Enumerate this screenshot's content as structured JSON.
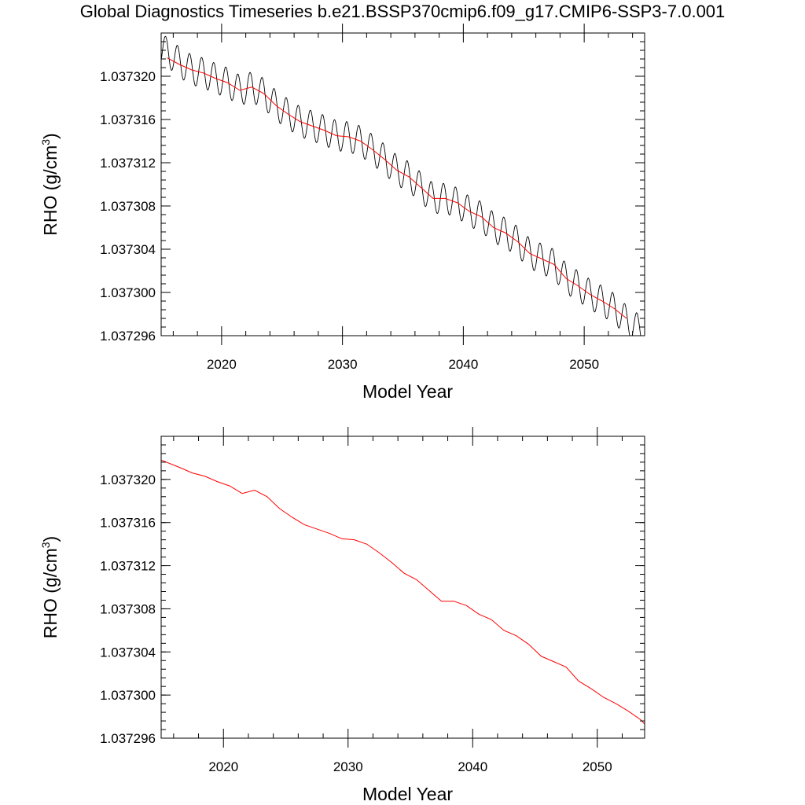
{
  "figure": {
    "title": "Global Diagnostics Timeseries b.e21.BSSP370cmip6.f09_g17.CMIP6-SSP3-7.0.001"
  },
  "colors": {
    "raw_series": "#000000",
    "smoothed_series": "#ff0000",
    "axes": "#000000"
  },
  "chart_data": [
    {
      "type": "line",
      "xlabel": "Model Year",
      "ylabel_base": "RHO (g/cm",
      "ylabel_sup": "3",
      "ylabel_close": ")",
      "xlim": [
        2015,
        2055
      ],
      "ylim": [
        1.037296,
        1.037324
      ],
      "xticks": [
        2020,
        2030,
        2040,
        2050
      ],
      "xtick_labels": [
        "2020",
        "2030",
        "2040",
        "2050"
      ],
      "yticks": [
        1.037296,
        1.0373,
        1.037304,
        1.037308,
        1.037312,
        1.037316,
        1.03732
      ],
      "ytick_labels": [
        "1.037296",
        "1.037300",
        "1.037304",
        "1.037308",
        "1.037312",
        "1.037316",
        "1.037320"
      ],
      "grid": false,
      "series": [
        {
          "role": "monthly",
          "seasonal_amplitude": 1.4e-06,
          "x": [
            2015.5,
            2016.5,
            2017.5,
            2018.5,
            2019.5,
            2020.5,
            2021.5,
            2022.5,
            2023.5,
            2024.5,
            2025.5,
            2026.5,
            2027.5,
            2028.5,
            2029.5,
            2030.5,
            2031.5,
            2032.5,
            2033.5,
            2034.5,
            2035.5,
            2036.5,
            2037.5,
            2038.5,
            2039.5,
            2040.5,
            2041.5,
            2042.5,
            2043.5,
            2044.5,
            2045.5,
            2046.5,
            2047.5,
            2048.5,
            2049.5,
            2050.5,
            2051.5,
            2052.5,
            2053.5,
            2054.5
          ],
          "y": [
            1.0373223,
            1.0373213,
            1.0373206,
            1.0373203,
            1.0373198,
            1.0373194,
            1.0373187,
            1.037319,
            1.0373184,
            1.0373173,
            1.0373165,
            1.0373158,
            1.0373154,
            1.037315,
            1.0373145,
            1.0373144,
            1.037314,
            1.0373132,
            1.0373123,
            1.0373113,
            1.0373107,
            1.0373097,
            1.0373087,
            1.0373087,
            1.0373083,
            1.0373075,
            1.037307,
            1.037306,
            1.0373055,
            1.0373047,
            1.0373036,
            1.0373031,
            1.0373026,
            1.0373013,
            1.0373006,
            1.0372998,
            1.0372992,
            1.0372985,
            1.0372974,
            1.0372966
          ]
        },
        {
          "role": "annual",
          "x": [
            2015.5,
            2016.5,
            2017.5,
            2018.5,
            2019.5,
            2020.5,
            2021.5,
            2022.5,
            2023.5,
            2024.5,
            2025.5,
            2026.5,
            2027.5,
            2028.5,
            2029.5,
            2030.5,
            2031.5,
            2032.5,
            2033.5,
            2034.5,
            2035.5,
            2036.5,
            2037.5,
            2038.5,
            2039.5,
            2040.5,
            2041.5,
            2042.5,
            2043.5,
            2044.5,
            2045.5,
            2046.5,
            2047.5,
            2048.5,
            2049.5,
            2050.5,
            2051.5,
            2052.5,
            2053.5
          ],
          "y": [
            1.0373217,
            1.0373211,
            1.0373206,
            1.0373203,
            1.0373198,
            1.0373194,
            1.0373187,
            1.037319,
            1.0373184,
            1.0373173,
            1.0373165,
            1.0373158,
            1.0373154,
            1.037315,
            1.0373145,
            1.0373144,
            1.037314,
            1.0373132,
            1.0373123,
            1.0373113,
            1.0373107,
            1.0373097,
            1.0373087,
            1.0373087,
            1.0373083,
            1.0373075,
            1.037307,
            1.037306,
            1.0373055,
            1.0373047,
            1.0373036,
            1.0373031,
            1.0373026,
            1.0373013,
            1.0373006,
            1.0372998,
            1.0372992,
            1.0372985,
            1.0372976
          ]
        }
      ]
    },
    {
      "type": "line",
      "xlabel": "Model Year",
      "ylabel_base": "RHO (g/cm",
      "ylabel_sup": "3",
      "ylabel_close": ")",
      "xlim": [
        2015,
        2053.8
      ],
      "ylim": [
        1.037296,
        1.037324
      ],
      "xticks": [
        2020,
        2030,
        2040,
        2050
      ],
      "xtick_labels": [
        "2020",
        "2030",
        "2040",
        "2050"
      ],
      "yticks": [
        1.037296,
        1.0373,
        1.037304,
        1.037308,
        1.037312,
        1.037316,
        1.03732
      ],
      "ytick_labels": [
        "1.037296",
        "1.037300",
        "1.037304",
        "1.037308",
        "1.037312",
        "1.037316",
        "1.037320"
      ],
      "grid": false,
      "series": [
        {
          "role": "annual",
          "x": [
            2015.0,
            2016.5,
            2017.5,
            2018.5,
            2019.5,
            2020.5,
            2021.5,
            2022.5,
            2023.5,
            2024.5,
            2025.5,
            2026.5,
            2027.5,
            2028.5,
            2029.5,
            2030.5,
            2031.5,
            2032.5,
            2033.5,
            2034.5,
            2035.5,
            2036.5,
            2037.5,
            2038.5,
            2039.5,
            2040.5,
            2041.5,
            2042.5,
            2043.5,
            2044.5,
            2045.5,
            2046.5,
            2047.5,
            2048.5,
            2049.5,
            2050.5,
            2051.5,
            2052.5,
            2053.5,
            2053.8
          ],
          "y": [
            1.0373218,
            1.0373211,
            1.0373206,
            1.0373203,
            1.0373198,
            1.0373194,
            1.0373187,
            1.037319,
            1.0373184,
            1.0373173,
            1.0373165,
            1.0373158,
            1.0373154,
            1.037315,
            1.0373145,
            1.0373144,
            1.037314,
            1.0373132,
            1.0373123,
            1.0373113,
            1.0373107,
            1.0373097,
            1.0373087,
            1.0373087,
            1.0373083,
            1.0373075,
            1.037307,
            1.037306,
            1.0373055,
            1.0373047,
            1.0373036,
            1.0373031,
            1.0373026,
            1.0373013,
            1.0373006,
            1.0372998,
            1.0372992,
            1.0372985,
            1.0372977,
            1.0372973
          ]
        }
      ]
    }
  ]
}
